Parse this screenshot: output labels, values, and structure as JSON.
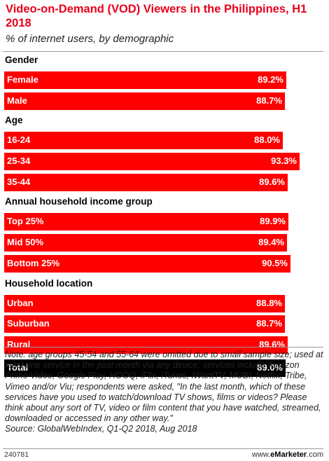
{
  "title": "Video-on-Demand (VOD) Viewers in the Philippines, H1 2018",
  "subtitle": "% of internet users, by demographic",
  "chart_data": {
    "type": "bar",
    "orientation": "horizontal",
    "groups": [
      {
        "name": "Gender",
        "rows": [
          {
            "label": "Female",
            "value": 89.2,
            "display": "89.2%"
          },
          {
            "label": "Male",
            "value": 88.7,
            "display": "88.7%"
          }
        ]
      },
      {
        "name": "Age",
        "rows": [
          {
            "label": "16-24",
            "value": 88.0,
            "display": "88.0%"
          },
          {
            "label": "25-34",
            "value": 93.3,
            "display": "93.3%"
          },
          {
            "label": "35-44",
            "value": 89.6,
            "display": "89.6%"
          }
        ]
      },
      {
        "name": "Annual household income group",
        "rows": [
          {
            "label": "Top 25%",
            "value": 89.9,
            "display": "89.9%"
          },
          {
            "label": "Mid 50%",
            "value": 89.4,
            "display": "89.4%"
          },
          {
            "label": "Bottom 25%",
            "value": 90.5,
            "display": "90.5%"
          }
        ]
      },
      {
        "name": "Household location",
        "rows": [
          {
            "label": "Urban",
            "value": 88.8,
            "display": "88.8%"
          },
          {
            "label": "Suburban",
            "value": 88.7,
            "display": "88.7%"
          },
          {
            "label": "Rural",
            "value": 89.6,
            "display": "89.6%"
          }
        ]
      }
    ],
    "total": {
      "label": "Total",
      "value": 89.0,
      "display": "89.0%"
    },
    "colors": {
      "bar": "#ff0000",
      "total": "#000000",
      "title": "#e8001c"
    }
  },
  "note": "Note: age groups 45-54 and 55-64 were omitted due to small sample size; used at least one service in the past month via any device; services include Amazon Prime Video, Google Play, HOOQ, iFlix, iTunes, iWantTV, MUBI, Netflix, Tribe, Vimeo and/or Viu; respondents were asked, \"In the last month, which of these services have you used to watch/download TV shows, films or videos? Please think about any sort of TV, video or film content that you have watched, streamed, downloaded or accessed in any other way.\"",
  "source": "Source: GlobalWebIndex, Q1-Q2 2018, Aug 2018",
  "footer": {
    "id": "240781",
    "brand_prefix": "www.",
    "brand_name": "eMarketer",
    "brand_suffix": ".com"
  }
}
